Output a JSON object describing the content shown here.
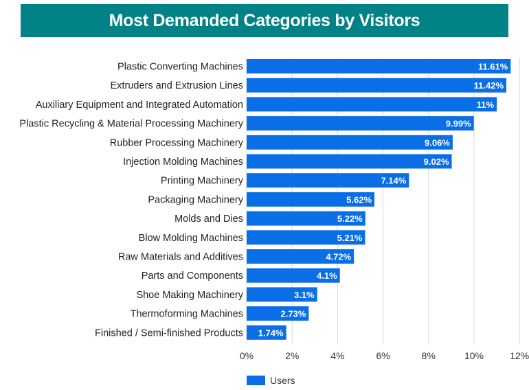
{
  "colors": {
    "title_bg": "#008286",
    "bar": "#0a6fe6",
    "grid": "#d9d9d9"
  },
  "chart_data": {
    "type": "bar",
    "orientation": "horizontal",
    "title": "Most Demanded Categories by Visitors",
    "categories": [
      "Plastic Converting Machines",
      "Extruders and Extrusion Lines",
      "Auxiliary Equipment and Integrated Automation",
      "Plastic Recycling & Material Processing Machinery",
      "Rubber Processing Machinery",
      "Injection Molding Machines",
      "Printing Machinery",
      "Packaging Machinery",
      "Molds and Dies",
      "Blow Molding Machines",
      "Raw Materials and Additives",
      "Parts and Components",
      "Shoe Making Machinery",
      "Thermoforming Machines",
      "Finished / Semi-finished Products"
    ],
    "series": [
      {
        "name": "Users",
        "values": [
          11.61,
          11.42,
          11,
          9.99,
          9.06,
          9.02,
          7.14,
          5.62,
          5.22,
          5.21,
          4.72,
          4.1,
          3.1,
          2.73,
          1.74
        ],
        "labels": [
          "11.61%",
          "11.42%",
          "11%",
          "9.99%",
          "9.06%",
          "9.02%",
          "7.14%",
          "5.62%",
          "5.22%",
          "5.21%",
          "4.72%",
          "4.1%",
          "3.1%",
          "2.73%",
          "1.74%"
        ]
      }
    ],
    "xlim": [
      0,
      12
    ],
    "xticks": [
      0,
      2,
      4,
      6,
      8,
      10,
      12
    ],
    "xtick_labels": [
      "0%",
      "2%",
      "4%",
      "6%",
      "8%",
      "10%",
      "12%"
    ],
    "grid": true,
    "legend_position": "bottom"
  }
}
